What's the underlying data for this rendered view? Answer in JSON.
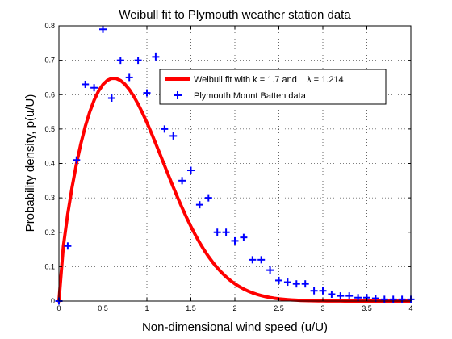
{
  "chart_data": {
    "type": "line",
    "title": "Weibull fit to Plymouth weather station data",
    "xlabel": "Non-dimensional wind speed (u/U)",
    "ylabel": "Probability density, p(u/U)",
    "xlim": [
      0,
      4
    ],
    "ylim": [
      0,
      0.8
    ],
    "xticks": [
      0,
      0.5,
      1,
      1.5,
      2,
      2.5,
      3,
      3.5,
      4
    ],
    "xtick_labels": [
      "0",
      "0.5",
      "1",
      "1.5",
      "2",
      "2.5",
      "3",
      "3.5",
      "4"
    ],
    "yticks": [
      0,
      0.1,
      0.2,
      0.3,
      0.4,
      0.5,
      0.6,
      0.7,
      0.8
    ],
    "ytick_labels": [
      "0",
      "0.1",
      "0.2",
      "0.3",
      "0.4",
      "0.5",
      "0.6",
      "0.7",
      "0.8"
    ],
    "grid": true,
    "legend_position": "top-right",
    "series": [
      {
        "name": "Weibull fit with k = 1.7 and    λ = 1.214",
        "kind": "line",
        "color": "#ff0000",
        "k": 1.7,
        "lambda": 1.214,
        "x": [
          0,
          0.05,
          0.1,
          0.15,
          0.2,
          0.25,
          0.3,
          0.35,
          0.4,
          0.45,
          0.5,
          0.55,
          0.6,
          0.65,
          0.7,
          0.75,
          0.8,
          0.85,
          0.9,
          0.95,
          1.0,
          1.05,
          1.1,
          1.15,
          1.2,
          1.25,
          1.3,
          1.35,
          1.4,
          1.45,
          1.5,
          1.55,
          1.6,
          1.65,
          1.7,
          1.75,
          1.8,
          1.85,
          1.9,
          1.95,
          2.0,
          2.05,
          2.1,
          2.15,
          2.2,
          2.25,
          2.3,
          2.35,
          2.4,
          2.45,
          2.5,
          2.55,
          2.6,
          2.65,
          2.7,
          2.75,
          2.8,
          2.85,
          2.9,
          2.95,
          3.0,
          3.05,
          3.1,
          3.15,
          3.2,
          3.25,
          3.3,
          3.35,
          3.4,
          3.45,
          3.5,
          3.55,
          3.6,
          3.65,
          3.7,
          3.75,
          3.8,
          3.85,
          3.9,
          3.95,
          4.0
        ],
        "y": [
          0,
          0.1584,
          0.253,
          0.3318,
          0.3995,
          0.458,
          0.508,
          0.5498,
          0.5838,
          0.6102,
          0.6294,
          0.6416,
          0.6474,
          0.6471,
          0.6413,
          0.6304,
          0.615,
          0.5955,
          0.5726,
          0.5469,
          0.5189,
          0.4891,
          0.4581,
          0.4263,
          0.3943,
          0.3624,
          0.3311,
          0.3006,
          0.2713,
          0.2434,
          0.217,
          0.1924,
          0.1695,
          0.1485,
          0.1294,
          0.1121,
          0.0966,
          0.0827,
          0.0705,
          0.0597,
          0.0503,
          0.0421,
          0.0351,
          0.0291,
          0.0239,
          0.0196,
          0.016,
          0.0129,
          0.0104,
          0.0083,
          0.0066,
          0.0052,
          0.0041,
          0.0032,
          0.0025,
          0.0019,
          0.0015,
          0.0011,
          0.0009,
          0.0007,
          0.0005,
          0.0004,
          0.0003,
          0.0002,
          0.0002,
          0.0001,
          0.0001,
          0.0001,
          0.0001,
          0.0,
          0.0,
          0.0,
          0.0,
          0.0,
          0.0,
          0.0,
          0.0,
          0.0,
          0.0,
          0.0,
          0.0
        ]
      },
      {
        "name": "Plymouth Mount Batten data",
        "kind": "scatter",
        "marker": "plus",
        "color": "#0000ff",
        "x": [
          0,
          0.1,
          0.2,
          0.3,
          0.4,
          0.5,
          0.6,
          0.7,
          0.8,
          0.9,
          1.0,
          1.1,
          1.2,
          1.3,
          1.4,
          1.5,
          1.6,
          1.7,
          1.8,
          1.9,
          2.0,
          2.1,
          2.2,
          2.3,
          2.4,
          2.5,
          2.6,
          2.7,
          2.8,
          2.9,
          3.0,
          3.1,
          3.2,
          3.3,
          3.4,
          3.5,
          3.6,
          3.7,
          3.8,
          3.9,
          4.0
        ],
        "y": [
          0,
          0.16,
          0.41,
          0.63,
          0.62,
          0.79,
          0.59,
          0.7,
          0.65,
          0.7,
          0.605,
          0.71,
          0.5,
          0.48,
          0.35,
          0.38,
          0.28,
          0.3,
          0.2,
          0.2,
          0.175,
          0.185,
          0.12,
          0.12,
          0.09,
          0.06,
          0.055,
          0.05,
          0.05,
          0.03,
          0.03,
          0.02,
          0.015,
          0.015,
          0.01,
          0.01,
          0.008,
          0.005,
          0.005,
          0.005,
          0.005
        ]
      }
    ]
  }
}
